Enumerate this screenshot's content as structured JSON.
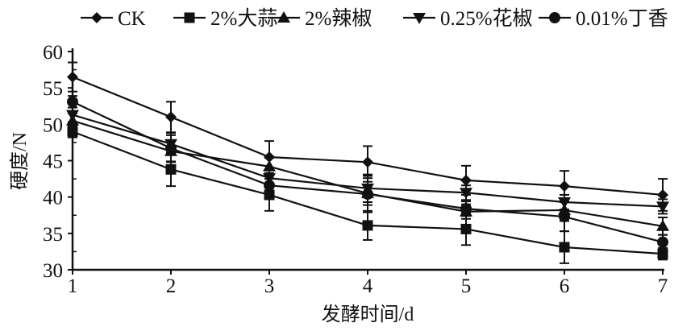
{
  "chart_data": {
    "type": "line",
    "xlabel": "发酵时间/d",
    "ylabel": "硬度/N",
    "x": [
      1,
      2,
      3,
      4,
      5,
      6,
      7
    ],
    "xlim": [
      1,
      7
    ],
    "ylim": [
      30,
      60
    ],
    "yticks": [
      30,
      35,
      40,
      45,
      50,
      55,
      60
    ],
    "grid": false,
    "legend": "top",
    "series": [
      {
        "name": "CK",
        "marker": "diamond",
        "values": [
          56.5,
          51.0,
          45.5,
          44.8,
          42.3,
          41.5,
          40.3
        ],
        "errors": [
          2.0,
          2.1,
          2.2,
          2.2,
          2.0,
          2.1,
          2.2
        ]
      },
      {
        "name": "2%大蒜",
        "marker": "square",
        "values": [
          49.0,
          43.8,
          40.3,
          36.1,
          35.6,
          33.1,
          32.2
        ],
        "errors": [
          0.8,
          2.3,
          2.2,
          2.0,
          2.2,
          2.2,
          0.8
        ]
      },
      {
        "name": "2%辣椒",
        "marker": "triangle-up",
        "values": [
          50.5,
          46.3,
          44.2,
          40.5,
          38.0,
          38.2,
          36.0
        ],
        "errors": [
          1.0,
          1.5,
          1.2,
          1.6,
          1.0,
          1.5,
          1.2
        ]
      },
      {
        "name": "0.25%花椒",
        "marker": "triangle-down",
        "values": [
          51.3,
          47.3,
          42.6,
          41.2,
          40.6,
          39.3,
          38.7
        ],
        "errors": [
          1.0,
          1.5,
          1.2,
          1.9,
          1.0,
          1.0,
          1.0
        ]
      },
      {
        "name": "0.01%丁香",
        "marker": "circle",
        "values": [
          53.1,
          46.7,
          41.6,
          40.4,
          38.4,
          37.3,
          33.8
        ],
        "errors": [
          0.8,
          1.8,
          1.6,
          2.5,
          1.0,
          2.0,
          1.0
        ]
      }
    ]
  }
}
